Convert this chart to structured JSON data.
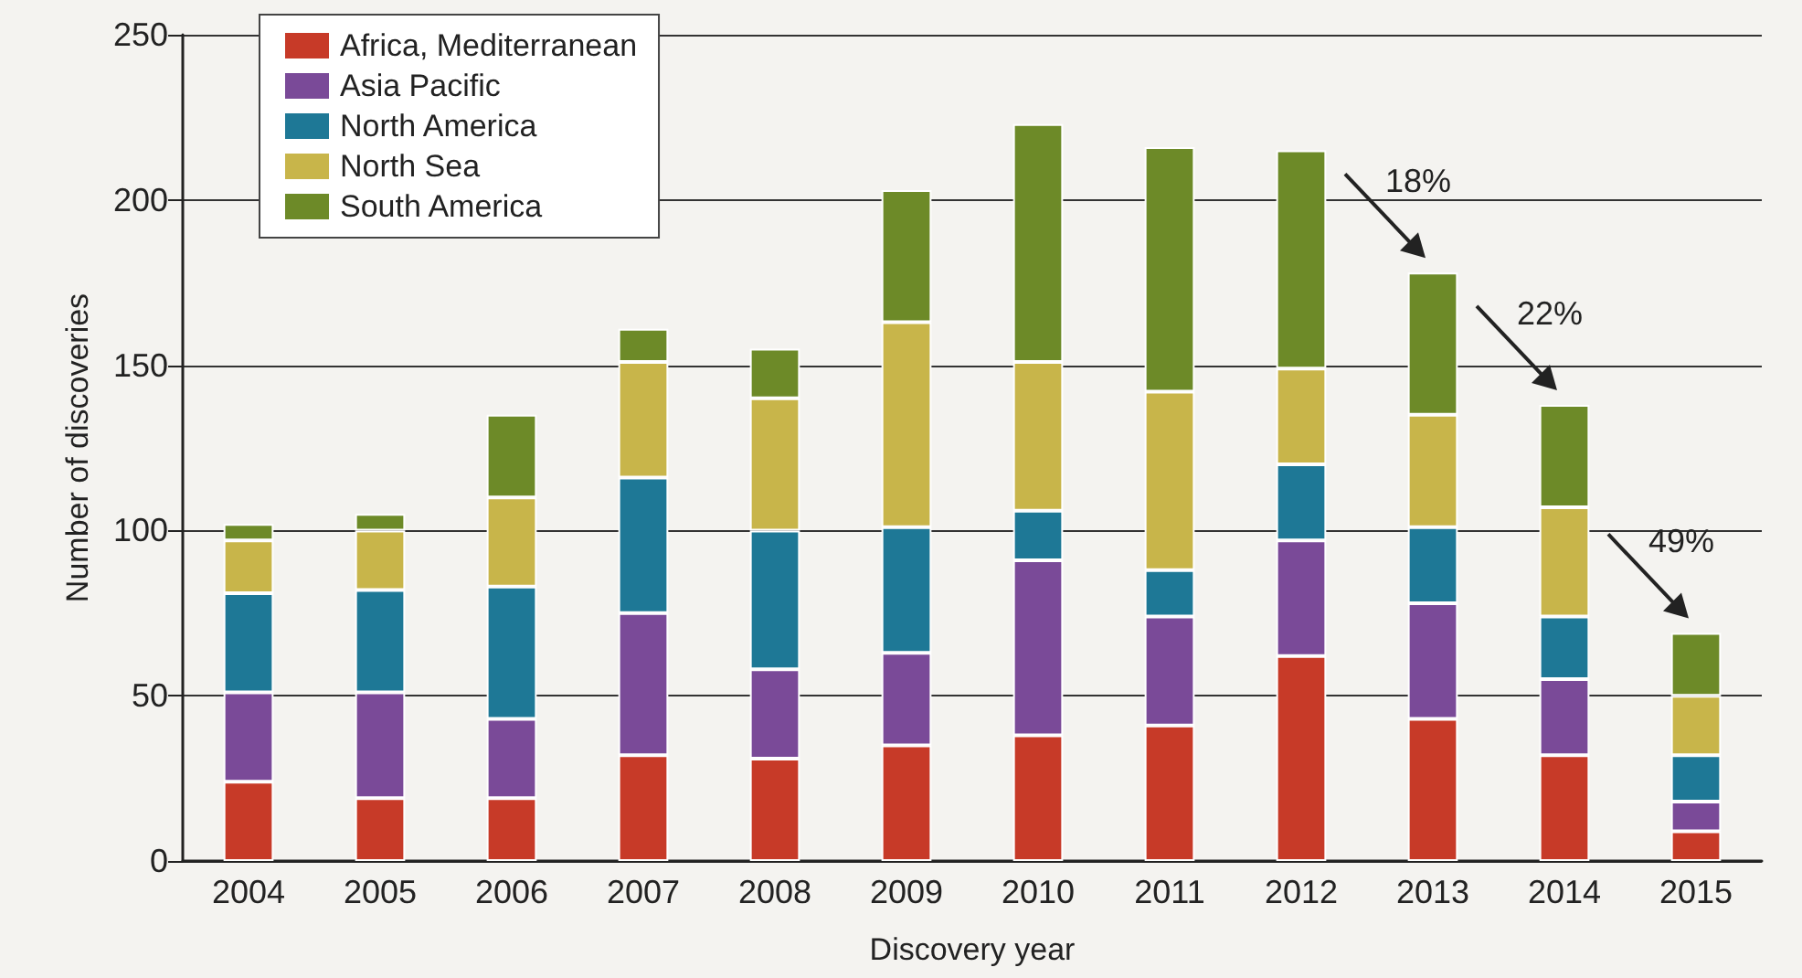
{
  "chart_data": {
    "type": "bar",
    "stacked": true,
    "xlabel": "Discovery year",
    "ylabel": "Number of discoveries",
    "categories": [
      "2004",
      "2005",
      "2006",
      "2007",
      "2008",
      "2009",
      "2010",
      "2011",
      "2012",
      "2013",
      "2014",
      "2015"
    ],
    "series": [
      {
        "name": "Africa, Mediterranean",
        "color": "#c73a28",
        "values": [
          24,
          19,
          19,
          32,
          31,
          35,
          38,
          41,
          62,
          43,
          32,
          9
        ]
      },
      {
        "name": "Asia Pacific",
        "color": "#7a4a98",
        "values": [
          27,
          32,
          24,
          43,
          27,
          28,
          53,
          33,
          35,
          35,
          23,
          9
        ]
      },
      {
        "name": "North America",
        "color": "#1e7896",
        "values": [
          30,
          31,
          40,
          41,
          42,
          38,
          15,
          14,
          23,
          23,
          19,
          14
        ]
      },
      {
        "name": "North Sea",
        "color": "#c8b54a",
        "values": [
          16,
          18,
          27,
          35,
          40,
          62,
          45,
          54,
          29,
          34,
          33,
          18
        ]
      },
      {
        "name": "South America",
        "color": "#6d8a28",
        "values": [
          5,
          5,
          25,
          10,
          15,
          40,
          72,
          74,
          66,
          43,
          31,
          19
        ]
      }
    ],
    "ylim": [
      0,
      250
    ],
    "yticks": [
      0,
      50,
      100,
      150,
      200,
      250
    ],
    "grid": "y",
    "legend": "top left",
    "annotations": [
      {
        "text": "18%",
        "x": "2013",
        "y": 178
      },
      {
        "text": "22%",
        "x": "2014",
        "y": 138
      },
      {
        "text": "49%",
        "x": "2015",
        "y": 69
      }
    ]
  }
}
